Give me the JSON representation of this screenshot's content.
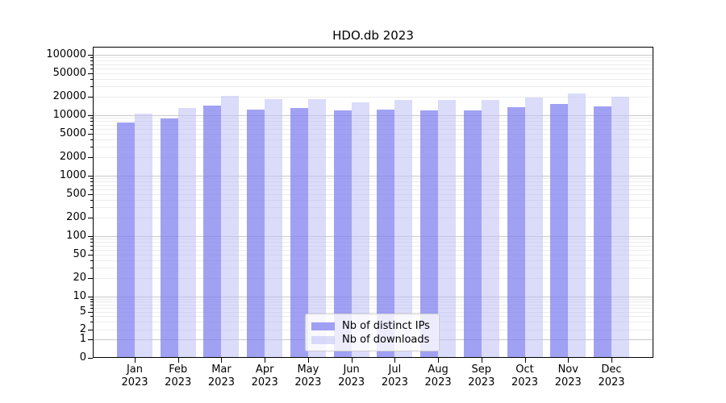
{
  "title": "HDO.db 2023",
  "chart_data": {
    "type": "bar",
    "title": "HDO.db 2023",
    "yscale": "symlog",
    "categories": [
      "Jan",
      "Feb",
      "Mar",
      "Apr",
      "May",
      "Jun",
      "Jul",
      "Aug",
      "Sep",
      "Oct",
      "Nov",
      "Dec"
    ],
    "category_year": "2023",
    "series": [
      {
        "name": "Nb of distinct IPs",
        "color": "rgba(125,125,238,0.72)",
        "values": [
          7500,
          8900,
          14300,
          12600,
          13300,
          11900,
          12400,
          12100,
          12000,
          13700,
          15500,
          13900
        ]
      },
      {
        "name": "Nb of downloads",
        "color": "rgba(190,190,246,0.55)",
        "values": [
          10700,
          13100,
          21000,
          18700,
          18700,
          16600,
          18100,
          17800,
          17900,
          19800,
          23100,
          20300
        ]
      }
    ],
    "y_ticks": [
      0,
      1,
      2,
      5,
      10,
      20,
      50,
      100,
      200,
      500,
      1000,
      2000,
      5000,
      10000,
      20000,
      50000,
      100000
    ],
    "ylim": [
      0,
      136000
    ],
    "grid": "major+minor",
    "legend_position": "lower center"
  },
  "colors": {
    "major_grid": "#c9c9c9",
    "minor_grid": "#ececec",
    "axis": "#000000"
  }
}
